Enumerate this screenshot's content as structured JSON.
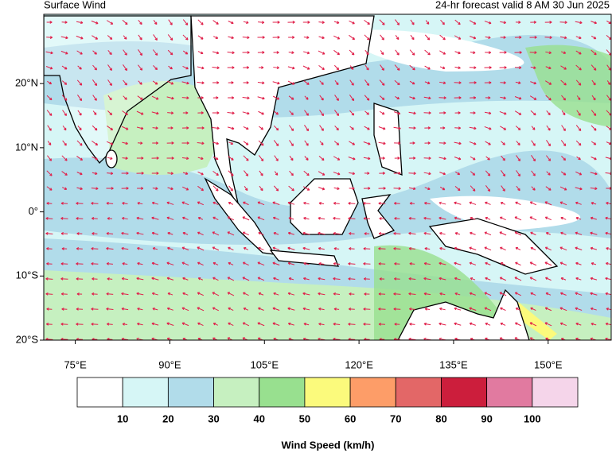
{
  "header": {
    "title": "Surface Wind",
    "subtitle": "24-hr forecast valid 8 AM 30 Jun 2025"
  },
  "map": {
    "lon_extent": [
      70,
      160
    ],
    "lat_extent": [
      -20,
      30.8
    ],
    "lat_ticks": [
      {
        "value": 20,
        "label": "20°N"
      },
      {
        "value": 10,
        "label": "10°N"
      },
      {
        "value": 0,
        "label": "0°"
      },
      {
        "value": -10,
        "label": "10°S"
      },
      {
        "value": -20,
        "label": "20°S"
      }
    ],
    "lon_ticks": [
      {
        "value": 75,
        "label": "75°E"
      },
      {
        "value": 90,
        "label": "90°E"
      },
      {
        "value": 105,
        "label": "105°E"
      },
      {
        "value": 120,
        "label": "120°E"
      },
      {
        "value": 135,
        "label": "135°E"
      },
      {
        "value": 150,
        "label": "150°E"
      }
    ]
  },
  "colorbar": {
    "label": "Wind Speed (km/h)",
    "colors": [
      "#ffffff",
      "#d6f6f6",
      "#b1dcea",
      "#c6f0c0",
      "#98e08f",
      "#fbfa7c",
      "#fd9d68",
      "#e36767",
      "#cc1e3c",
      "#e17aa0",
      "#f5d5ea"
    ],
    "levels": [
      10,
      20,
      30,
      40,
      50,
      60,
      70,
      80,
      90,
      100
    ]
  }
}
